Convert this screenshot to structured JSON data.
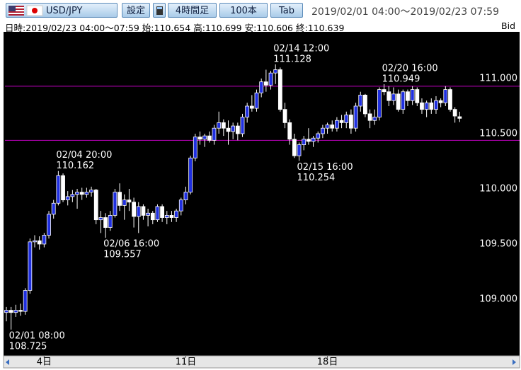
{
  "toolbar": {
    "pair": "USD/JPY",
    "settings": "設定",
    "timeframe": "4時間足",
    "bars": "100本",
    "tab": "Tab",
    "range": "2019/02/01 04:00〜2019/02/23 07:59"
  },
  "info": {
    "datetime": "日時:2019/02/23 04:00〜07:59",
    "open": "始:110.654",
    "high": "高:110.699",
    "low": "安:110.606",
    "close": "終:110.639",
    "side": "Bid"
  },
  "chart_data": {
    "type": "candlestick",
    "open": [
      108.88,
      108.9,
      108.88,
      108.9,
      108.89,
      109.08,
      109.52,
      109.53,
      109.5,
      109.58,
      109.77,
      109.87,
      110.12,
      109.9,
      109.93,
      109.95,
      109.97,
      109.95,
      109.97,
      109.99,
      109.72,
      109.74,
      109.65,
      109.76,
      109.97,
      109.85,
      109.9,
      109.88,
      109.75,
      109.84,
      109.76,
      109.78,
      109.72,
      109.84,
      109.74,
      109.76,
      109.74,
      109.8,
      109.9,
      109.97,
      110.28,
      110.47,
      110.45,
      110.48,
      110.44,
      110.55,
      110.6,
      110.55,
      110.52,
      110.57,
      110.5,
      110.65,
      110.75,
      110.73,
      110.87,
      110.97,
      110.94,
      111.05,
      111.08,
      110.72,
      110.6,
      110.45,
      110.3,
      110.4,
      110.45,
      110.43,
      110.46,
      110.5,
      110.55,
      110.58,
      110.55,
      110.62,
      110.6,
      110.67,
      110.55,
      110.75,
      110.85,
      110.68,
      110.62,
      110.65,
      110.9,
      110.88,
      110.8,
      110.86,
      110.72,
      110.88,
      110.8,
      110.9,
      110.78,
      110.72,
      110.78,
      110.72,
      110.8,
      110.78,
      110.9,
      110.72,
      110.654
    ],
    "high": [
      108.93,
      108.93,
      108.95,
      108.96,
      109.1,
      109.55,
      109.58,
      109.57,
      109.6,
      109.8,
      109.9,
      110.162,
      110.14,
      109.98,
      109.99,
      110.0,
      110.01,
      110.01,
      110.02,
      110.0,
      109.8,
      109.78,
      109.8,
      110.0,
      110.05,
      109.95,
      110.0,
      109.92,
      109.88,
      109.86,
      109.82,
      109.8,
      109.86,
      109.86,
      109.8,
      109.8,
      109.82,
      109.92,
      110.02,
      110.3,
      110.5,
      110.52,
      110.5,
      110.52,
      110.58,
      110.7,
      110.63,
      110.62,
      110.6,
      110.6,
      110.68,
      110.78,
      110.85,
      110.9,
      111.0,
      111.08,
      111.07,
      111.128,
      111.1,
      110.78,
      110.63,
      110.5,
      110.42,
      110.48,
      110.55,
      110.48,
      110.52,
      110.58,
      110.6,
      110.62,
      110.65,
      110.67,
      110.7,
      110.72,
      110.78,
      110.88,
      110.86,
      110.72,
      110.72,
      110.92,
      110.949,
      110.93,
      110.92,
      110.9,
      110.9,
      110.9,
      110.93,
      110.92,
      110.82,
      110.8,
      110.82,
      110.84,
      110.82,
      110.93,
      110.92,
      110.74,
      110.699
    ],
    "low": [
      108.8,
      108.725,
      108.84,
      108.85,
      108.86,
      109.05,
      109.47,
      109.45,
      109.47,
      109.55,
      109.73,
      109.85,
      109.88,
      109.85,
      109.88,
      109.82,
      109.9,
      109.92,
      109.93,
      109.68,
      109.6,
      109.557,
      109.62,
      109.74,
      109.8,
      109.72,
      109.8,
      109.65,
      109.6,
      109.72,
      109.66,
      109.68,
      109.7,
      109.7,
      109.68,
      109.7,
      109.7,
      109.76,
      109.86,
      109.95,
      110.25,
      110.4,
      110.38,
      110.42,
      110.4,
      110.5,
      110.48,
      110.4,
      110.45,
      110.44,
      110.47,
      110.6,
      110.7,
      110.7,
      110.83,
      110.88,
      110.9,
      110.95,
      110.7,
      110.55,
      110.4,
      110.28,
      110.254,
      110.35,
      110.4,
      110.38,
      110.42,
      110.46,
      110.5,
      110.52,
      110.52,
      110.55,
      110.55,
      110.5,
      110.52,
      110.7,
      110.65,
      110.55,
      110.58,
      110.62,
      110.85,
      110.75,
      110.76,
      110.7,
      110.68,
      110.75,
      110.76,
      110.75,
      110.68,
      110.65,
      110.68,
      110.68,
      110.74,
      110.75,
      110.7,
      110.6,
      110.606
    ],
    "close": [
      108.9,
      108.88,
      108.9,
      108.89,
      109.08,
      109.52,
      109.53,
      109.5,
      109.58,
      109.77,
      109.87,
      110.12,
      109.9,
      109.93,
      109.95,
      109.97,
      109.95,
      109.97,
      109.99,
      109.72,
      109.74,
      109.65,
      109.76,
      109.97,
      109.85,
      109.9,
      109.88,
      109.75,
      109.84,
      109.76,
      109.78,
      109.72,
      109.84,
      109.74,
      109.76,
      109.74,
      109.8,
      109.9,
      109.97,
      110.28,
      110.47,
      110.45,
      110.48,
      110.44,
      110.55,
      110.6,
      110.55,
      110.52,
      110.57,
      110.5,
      110.65,
      110.75,
      110.73,
      110.87,
      110.97,
      110.94,
      111.05,
      111.08,
      110.72,
      110.6,
      110.45,
      110.3,
      110.4,
      110.45,
      110.43,
      110.46,
      110.5,
      110.55,
      110.58,
      110.55,
      110.62,
      110.6,
      110.67,
      110.55,
      110.75,
      110.85,
      110.68,
      110.62,
      110.65,
      110.9,
      110.88,
      110.8,
      110.86,
      110.72,
      110.88,
      110.8,
      110.9,
      110.78,
      110.72,
      110.78,
      110.72,
      110.8,
      110.78,
      110.9,
      110.72,
      110.66,
      110.639
    ],
    "up_color": "#1f2fe0",
    "down_color": "#ffffff",
    "line_color": "#c000c0",
    "hlines": [
      110.93,
      110.44
    ],
    "annotations": [
      {
        "label": "02/01 08:00",
        "value": 108.725
      },
      {
        "label": "02/04 20:00",
        "value": 110.162
      },
      {
        "label": "02/06 16:00",
        "value": 109.557
      },
      {
        "label": "02/14 12:00",
        "value": 111.128
      },
      {
        "label": "02/15 16:00",
        "value": 110.254
      },
      {
        "label": "02/20 16:00",
        "value": 110.949
      }
    ],
    "ylim": [
      108.487,
      111.423
    ],
    "yticks": [
      {
        "value": 109,
        "label": "109.000"
      },
      {
        "value": 109.5,
        "label": "109.500"
      },
      {
        "value": 110,
        "label": "110.000"
      },
      {
        "value": 110.5,
        "label": "110.500"
      },
      {
        "value": 111,
        "label": "111.000"
      }
    ],
    "xlim": [
      -0.3,
      98.8
    ],
    "xticks": [
      {
        "value": 8,
        "label": "4日"
      },
      {
        "value": 38,
        "label": "11日"
      },
      {
        "value": 68,
        "label": "18日"
      }
    ]
  }
}
